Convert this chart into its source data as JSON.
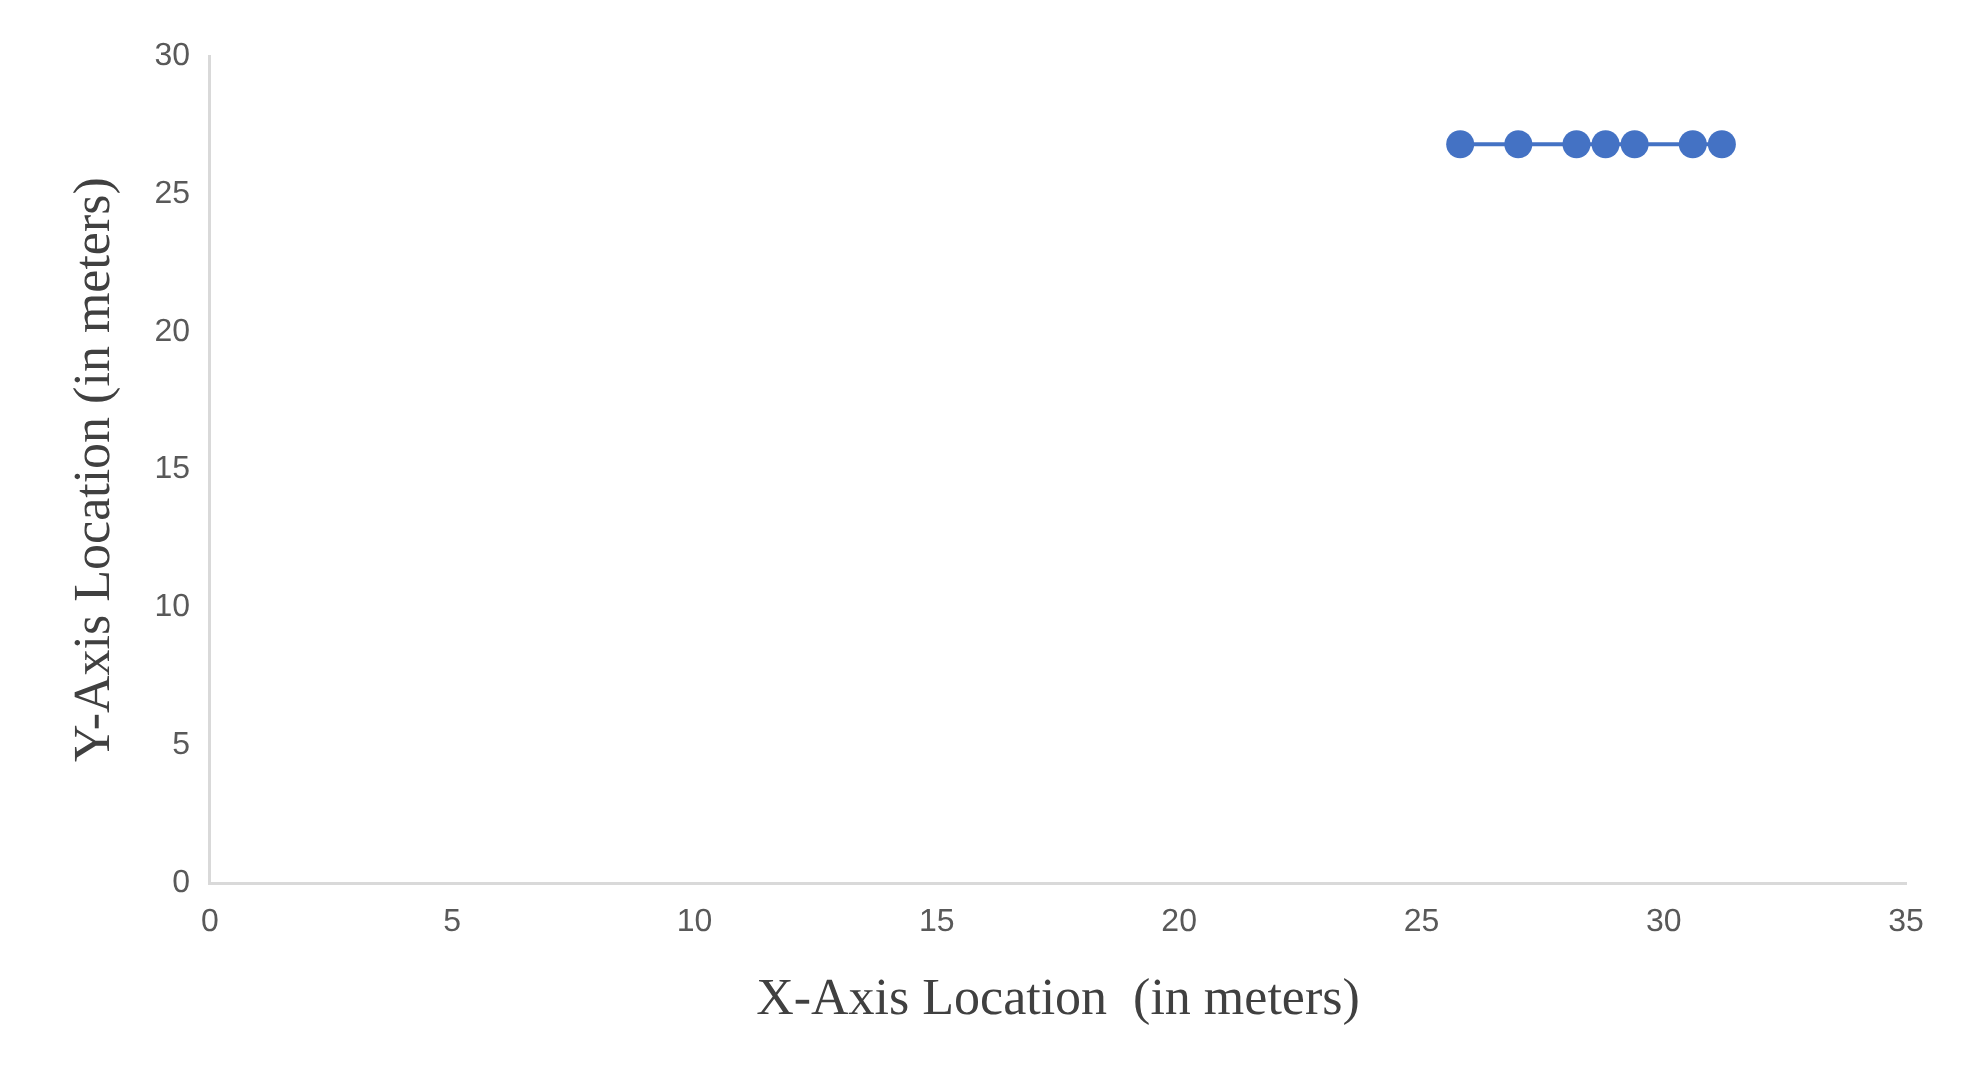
{
  "chart_data": {
    "type": "line",
    "xlabel": "X-Axis Location  (in meters)",
    "ylabel": "Y-Axis Location (in meters)",
    "x": [
      25.8,
      27.0,
      28.2,
      28.8,
      29.4,
      30.6,
      31.2
    ],
    "series": [
      {
        "color": "#4472c4",
        "values": [
          26.8,
          26.8,
          26.8,
          26.8,
          26.8,
          26.8,
          26.8
        ]
      }
    ],
    "xlim": [
      0,
      35
    ],
    "xticks": [
      0,
      5,
      10,
      15,
      20,
      25,
      30,
      35
    ],
    "ylim": [
      0,
      30
    ],
    "yticks": [
      0,
      5,
      10,
      15,
      20,
      25,
      30
    ],
    "grid": false,
    "legend": false,
    "marker": "circle",
    "line_style": "solid"
  }
}
